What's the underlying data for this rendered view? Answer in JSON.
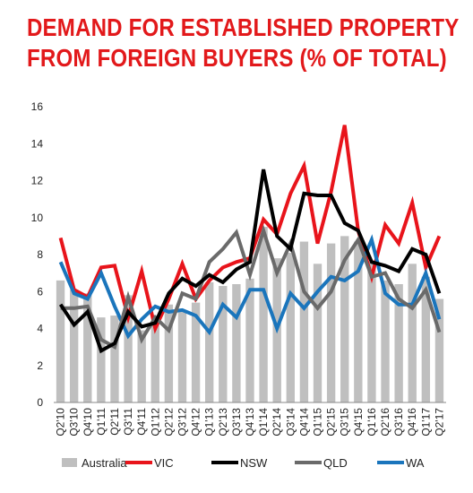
{
  "chart_data": {
    "type": "bar+line",
    "title_lines": [
      "DEMAND FOR ESTABLISHED PROPERTY",
      "FROM FOREIGN BUYERS (% OF TOTAL)"
    ],
    "ylim": [
      0,
      16
    ],
    "yticks": [
      "0",
      "2",
      "4",
      "6",
      "8",
      "10",
      "12",
      "14",
      "16"
    ],
    "categories": [
      "Q2'10",
      "Q3'10",
      "Q4'10",
      "Q1'11",
      "Q2'11",
      "Q3'11",
      "Q4'11",
      "Q1'12",
      "Q2'12",
      "Q3'12",
      "Q4'12",
      "Q1'13",
      "Q2'13",
      "Q3'13",
      "Q4'13",
      "Q1'14",
      "Q2'14",
      "Q3'14",
      "Q4'14",
      "Q1'15",
      "Q2'15",
      "Q3'15",
      "Q4'15",
      "Q1'16",
      "Q2'16",
      "Q3'16",
      "Q4'16",
      "Q1'17",
      "Q2'17"
    ],
    "x_labels": [
      "Q2'10",
      "Q3'10",
      "Q4'10",
      "Q1'11",
      "Q2'11",
      "Q3'11",
      "Q4'11",
      "Q1'12",
      "Q2'12",
      "Q3'12",
      "Q4'12",
      "Q1'13",
      "Q2'13",
      "Q3'13",
      "Q4'13",
      "Q1'14",
      "Q2'14",
      "Q3'14",
      "Q4'14",
      "Q1'15",
      "Q2'15",
      "Q3'15",
      "Q4'15",
      "Q1'16",
      "Q2'16",
      "Q3'16",
      "Q4'16",
      "Q1'17",
      "Q2'17"
    ],
    "bars": {
      "name": "Australia",
      "color": "#bfbfbf",
      "values": [
        6.6,
        6.1,
        5.9,
        4.6,
        4.7,
        5.8,
        3.9,
        4.4,
        5.3,
        5.0,
        5.4,
        6.5,
        6.3,
        6.4,
        6.7,
        9.5,
        7.8,
        8.1,
        8.7,
        7.5,
        8.6,
        9.0,
        8.7,
        7.6,
        6.6,
        6.4,
        7.5,
        6.8,
        5.6
      ]
    },
    "series": [
      {
        "name": "VIC",
        "color": "#e8141b",
        "values": [
          8.9,
          6.1,
          5.7,
          7.3,
          7.4,
          4.6,
          7.1,
          4.0,
          5.6,
          7.5,
          5.6,
          6.6,
          7.3,
          7.6,
          7.8,
          9.9,
          9.1,
          11.3,
          12.8,
          8.6,
          11.4,
          15.0,
          9.3,
          6.8,
          9.6,
          8.6,
          10.8,
          7.3,
          9.0
        ]
      },
      {
        "name": "NSW",
        "color": "#000000",
        "values": [
          5.3,
          4.2,
          4.9,
          2.8,
          3.2,
          4.9,
          4.1,
          4.3,
          5.9,
          6.7,
          6.3,
          6.9,
          6.5,
          7.2,
          7.6,
          12.6,
          9.0,
          8.3,
          11.3,
          11.2,
          11.2,
          9.7,
          9.3,
          7.6,
          7.4,
          7.1,
          8.3,
          8.0,
          5.9
        ]
      },
      {
        "name": "QLD",
        "color": "#6a6a6a",
        "values": [
          5.1,
          5.1,
          5.2,
          3.4,
          3.0,
          5.7,
          3.4,
          4.6,
          3.9,
          5.9,
          5.6,
          7.6,
          8.3,
          9.2,
          6.9,
          9.3,
          7.0,
          8.6,
          6.0,
          5.1,
          6.0,
          7.7,
          8.8,
          6.8,
          7.0,
          5.6,
          5.1,
          6.1,
          3.8
        ]
      },
      {
        "name": "WA",
        "color": "#1a75bc",
        "values": [
          7.6,
          5.9,
          5.6,
          7.0,
          5.2,
          3.6,
          4.5,
          5.2,
          4.9,
          5.0,
          4.7,
          3.8,
          5.3,
          4.6,
          6.1,
          6.1,
          4.0,
          5.9,
          5.1,
          6.0,
          6.8,
          6.6,
          7.1,
          8.8,
          5.9,
          5.3,
          5.3,
          7.0,
          4.5
        ]
      }
    ],
    "legend": [
      "Australia",
      "VIC",
      "NSW",
      "QLD",
      "WA"
    ],
    "grid": false,
    "legend_position": "bottom"
  }
}
